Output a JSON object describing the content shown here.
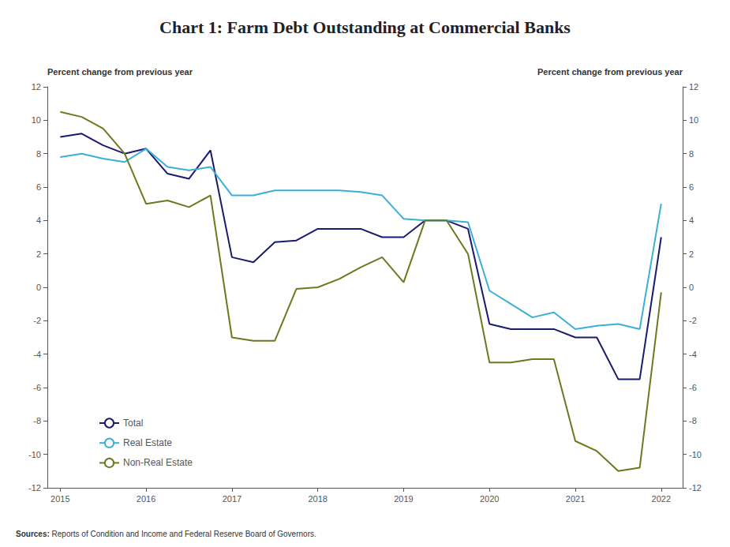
{
  "chart_data": {
    "type": "line",
    "title": "Chart 1: Farm Debt Outstanding at Commercial Banks",
    "ylabel": "Percent change from previous year",
    "y2label": "Percent change from previous year",
    "annotations": [
      "Sources:",
      " Reports of Condition and Income and Federal Reserve Board of Governors."
    ],
    "x": [
      2015.0,
      2015.25,
      2015.5,
      2015.75,
      2016.0,
      2016.25,
      2016.5,
      2016.75,
      2017.0,
      2017.25,
      2017.5,
      2017.75,
      2018.0,
      2018.25,
      2018.5,
      2018.75,
      2019.0,
      2019.25,
      2019.5,
      2019.75,
      2020.0,
      2020.25,
      2020.5,
      2020.75,
      2021.0,
      2021.25,
      2021.5,
      2021.75,
      2022.0
    ],
    "xlim": [
      2014.85,
      2022.25
    ],
    "xticks": [
      2015,
      2016,
      2017,
      2018,
      2019,
      2020,
      2021,
      2022
    ],
    "ylim": [
      -12,
      12
    ],
    "yticks": [
      -12,
      -10,
      -8,
      -6,
      -4,
      -2,
      0,
      2,
      4,
      6,
      8,
      10,
      12
    ],
    "y2lim": [
      -12,
      12
    ],
    "y2ticks": [
      -12,
      -10,
      -8,
      -6,
      -4,
      -2,
      0,
      2,
      4,
      6,
      8,
      10,
      12
    ],
    "series": [
      {
        "name": "Total",
        "color": "#1a1a6e",
        "values": [
          9.0,
          9.2,
          8.5,
          8.0,
          8.3,
          6.8,
          6.5,
          8.2,
          1.8,
          1.5,
          2.7,
          2.8,
          3.5,
          3.5,
          3.5,
          3.0,
          3.0,
          4.0,
          4.0,
          3.5,
          -2.2,
          -2.5,
          -2.5,
          -2.5,
          -3.0,
          -3.0,
          -5.5,
          -5.5,
          3.0
        ]
      },
      {
        "name": "Real Estate",
        "color": "#3ab0d8",
        "values": [
          7.8,
          8.0,
          7.7,
          7.5,
          8.3,
          7.2,
          7.0,
          7.2,
          5.5,
          5.5,
          5.8,
          5.8,
          5.8,
          5.8,
          5.7,
          5.5,
          4.1,
          4.0,
          4.0,
          3.9,
          -0.2,
          -1.0,
          -1.8,
          -1.5,
          -2.5,
          -2.3,
          -2.2,
          -2.5,
          5.0
        ]
      },
      {
        "name": "Non-Real Estate",
        "color": "#6b7a1e",
        "values": [
          10.5,
          10.2,
          9.5,
          8.0,
          5.0,
          5.2,
          4.8,
          5.5,
          -3.0,
          -3.2,
          -3.2,
          -0.1,
          0.0,
          0.5,
          1.2,
          1.8,
          0.3,
          4.0,
          4.0,
          2.0,
          -4.5,
          -4.5,
          -4.3,
          -4.3,
          -9.2,
          -9.8,
          -11.0,
          -10.8,
          -0.3
        ]
      }
    ],
    "legend": "lower left",
    "grid": false
  }
}
